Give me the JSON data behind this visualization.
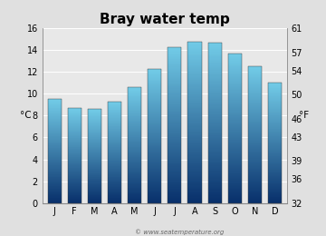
{
  "title": "Bray water temp",
  "months": [
    "J",
    "F",
    "M",
    "A",
    "M",
    "J",
    "J",
    "A",
    "S",
    "O",
    "N",
    "D"
  ],
  "temps_c": [
    9.5,
    8.7,
    8.6,
    9.3,
    10.6,
    12.3,
    14.3,
    14.8,
    14.7,
    13.7,
    12.5,
    11.0
  ],
  "ylim_c": [
    0,
    16
  ],
  "yticks_c": [
    0,
    2,
    4,
    6,
    8,
    10,
    12,
    14,
    16
  ],
  "yticks_f": [
    32,
    36,
    39,
    43,
    46,
    50,
    54,
    57,
    61
  ],
  "ylabel_left": "°C",
  "ylabel_right": "°F",
  "bar_color_top": "#72cce8",
  "bar_color_bottom": "#08306b",
  "background_color": "#e0e0e0",
  "plot_bg_color": "#e8e8e8",
  "watermark": "© www.seatemperature.org",
  "title_fontsize": 11,
  "axis_fontsize": 7,
  "label_fontsize": 7.5
}
